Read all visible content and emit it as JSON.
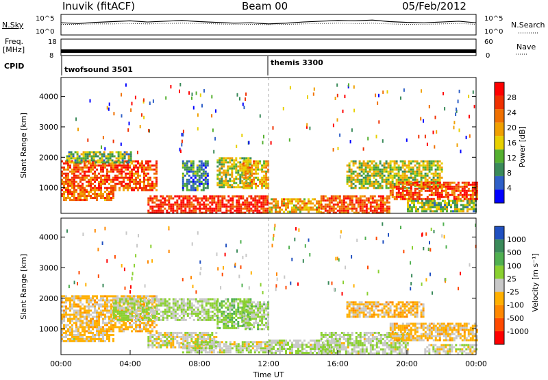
{
  "header": {
    "site": "Inuvik (fitACF)",
    "beam": "Beam 00",
    "date": "05/Feb/2012"
  },
  "side_labels": {
    "nsky": "N.Sky",
    "freq_line1": "Freq.",
    "freq_line2": "[MHz]",
    "cpid": "CPID",
    "nsearch": "N.Search",
    "nave": "Nave",
    "noise_ticks": [
      "10^5",
      "10^0"
    ],
    "freq_ticks": [
      "18",
      "8"
    ],
    "nave_ticks": [
      "60",
      "0"
    ]
  },
  "cpid_labels": [
    "twofsound 3501",
    "themis 3300"
  ],
  "colors": {
    "power_scale": [
      "#0000ff",
      "#2f60c8",
      "#3a8a5a",
      "#55b030",
      "#e8d000",
      "#f0a000",
      "#f07000",
      "#f03000",
      "#ff0000"
    ],
    "velocity_scale": [
      "#ff0000",
      "#ff4a00",
      "#ff8800",
      "#ffb000",
      "#c8c8c8",
      "#8ad030",
      "#50b050",
      "#3a8a5a",
      "#2050c0"
    ],
    "ground_scatter": "#c8c8c8"
  },
  "chart_data": [
    {
      "type": "line",
      "title": "",
      "series": [
        {
          "name": "N.Sky",
          "values": [
            3.0,
            2.8,
            3.1,
            3.3,
            3.5,
            3.2,
            3.4,
            3.6,
            3.3,
            3.1,
            2.9,
            3.0,
            2.7,
            2.9,
            3.2,
            3.4,
            3.6,
            3.5,
            3.7,
            3.3,
            3.1,
            3.0,
            3.2,
            3.4,
            3.0
          ]
        },
        {
          "name": "N.Search",
          "values": [
            2.6,
            2.6,
            2.7,
            2.7,
            2.8,
            2.7,
            2.8,
            2.9,
            2.8,
            2.7,
            2.6,
            2.6,
            2.5,
            2.6,
            2.7,
            2.8,
            2.9,
            2.8,
            2.9,
            2.7,
            2.6,
            2.6,
            2.7,
            2.8,
            2.6
          ]
        }
      ],
      "x": [
        0,
        1,
        2,
        3,
        4,
        5,
        6,
        7,
        8,
        9,
        10,
        11,
        12,
        13,
        14,
        15,
        16,
        17,
        18,
        19,
        20,
        21,
        22,
        23,
        24
      ],
      "ylabel": "N.Sky",
      "yscale": "log",
      "ylim_exponent": [
        0,
        5
      ]
    },
    {
      "type": "line",
      "title": "",
      "series": [
        {
          "name": "Freq.",
          "values": [
            10.5,
            10.5,
            10.5,
            10.5,
            10.5,
            10.5,
            10.5,
            10.5,
            10.5,
            10.5,
            10.5,
            10.5,
            10.5,
            10.5,
            10.5,
            10.5,
            10.5,
            10.5,
            10.5,
            10.5,
            10.5,
            10.5,
            10.5,
            10.5,
            10.5
          ]
        },
        {
          "name": "Nave",
          "values": [
            18,
            18,
            18,
            18,
            18,
            18,
            18,
            18,
            18,
            18,
            18,
            18,
            20,
            20,
            20,
            20,
            20,
            20,
            20,
            20,
            20,
            20,
            20,
            20,
            20
          ]
        }
      ],
      "x": [
        0,
        1,
        2,
        3,
        4,
        5,
        6,
        7,
        8,
        9,
        10,
        11,
        12,
        13,
        14,
        15,
        16,
        17,
        18,
        19,
        20,
        21,
        22,
        23,
        24
      ],
      "ylabel": "Freq. [MHz]",
      "ylim": [
        8,
        18
      ],
      "y2lim": [
        0,
        60
      ]
    },
    {
      "type": "heatmap",
      "title": "",
      "ylabel": "Slant Range [km]",
      "yticks": [
        "1000",
        "2000",
        "3000",
        "4000"
      ],
      "ylim": [
        180,
        4600
      ],
      "xlim": [
        0,
        24
      ],
      "colorbar_label": "Power [dB]",
      "colorbar_ticks": [
        "4",
        "8",
        "12",
        "16",
        "20",
        "24",
        "28"
      ],
      "zlim": [
        0,
        30
      ],
      "regions": [
        {
          "x0": 0,
          "x1": 5.5,
          "y0": 900,
          "y1": 1900,
          "value": 24
        },
        {
          "x0": 0,
          "x1": 3,
          "y0": 600,
          "y1": 900,
          "value": 22
        },
        {
          "x0": 0.3,
          "x1": 4,
          "y0": 1800,
          "y1": 2200,
          "value": 12
        },
        {
          "x0": 5,
          "x1": 12,
          "y0": 200,
          "y1": 750,
          "value": 26
        },
        {
          "x0": 7,
          "x1": 8.5,
          "y0": 900,
          "y1": 1900,
          "value": 8
        },
        {
          "x0": 9,
          "x1": 11,
          "y0": 1000,
          "y1": 2000,
          "value": 14
        },
        {
          "x0": 10.5,
          "x1": 12,
          "y0": 1000,
          "y1": 1900,
          "value": 18
        },
        {
          "x0": 12,
          "x1": 15,
          "y0": 200,
          "y1": 650,
          "value": 18
        },
        {
          "x0": 15,
          "x1": 19,
          "y0": 200,
          "y1": 750,
          "value": 24
        },
        {
          "x0": 16.5,
          "x1": 22,
          "y0": 1000,
          "y1": 1900,
          "value": 14
        },
        {
          "x0": 19,
          "x1": 24,
          "y0": 600,
          "y1": 1200,
          "value": 24
        },
        {
          "x0": 20,
          "x1": 24,
          "y0": 200,
          "y1": 600,
          "value": 12
        }
      ]
    },
    {
      "type": "heatmap",
      "title": "",
      "ylabel": "Slant Range [km]",
      "xlabel": "Time UT",
      "xticks": [
        "00:00",
        "04:00",
        "08:00",
        "12:00",
        "16:00",
        "20:00",
        "00:00"
      ],
      "yticks": [
        "1000",
        "2000",
        "3000",
        "4000"
      ],
      "ylim": [
        180,
        4600
      ],
      "xlim": [
        0,
        24
      ],
      "colorbar_label": "Velocity [m s⁻¹]",
      "colorbar_ticks": [
        "-1000",
        "-500",
        "-100",
        "-25",
        "25",
        "100",
        "500",
        "1000"
      ],
      "zlim": [
        -1200,
        1200
      ],
      "regions": [
        {
          "x0": 0,
          "x1": 5.5,
          "y0": 900,
          "y1": 2100,
          "value": -200
        },
        {
          "x0": 0,
          "x1": 3,
          "y0": 600,
          "y1": 900,
          "value": -100
        },
        {
          "x0": 3,
          "x1": 9,
          "y0": 1300,
          "y1": 2000,
          "value": 150
        },
        {
          "x0": 5,
          "x1": 9,
          "y0": 400,
          "y1": 900,
          "value": 0
        },
        {
          "x0": 7,
          "x1": 12,
          "y0": 200,
          "y1": 600,
          "value": 80
        },
        {
          "x0": 9,
          "x1": 11,
          "y0": 1000,
          "y1": 2000,
          "value": 300
        },
        {
          "x0": 10.5,
          "x1": 12,
          "y0": 1000,
          "y1": 1900,
          "value": 200
        },
        {
          "x0": 12,
          "x1": 16,
          "y0": 200,
          "y1": 650,
          "value": 90
        },
        {
          "x0": 15,
          "x1": 20,
          "y0": 200,
          "y1": 900,
          "value": 100
        },
        {
          "x0": 16.5,
          "x1": 21,
          "y0": 1400,
          "y1": 1900,
          "value": -250
        },
        {
          "x0": 19,
          "x1": 24,
          "y0": 600,
          "y1": 1200,
          "value": -200
        },
        {
          "x0": 21,
          "x1": 24,
          "y0": 200,
          "y1": 500,
          "value": 40
        }
      ]
    }
  ]
}
